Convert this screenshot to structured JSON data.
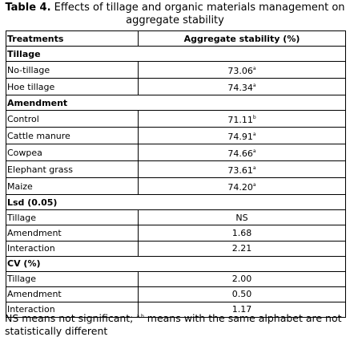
{
  "title": {
    "label": "Table 4.",
    "text": "Effects of tillage and organic materials management on aggregate stability"
  },
  "table": {
    "header": [
      "Treatments",
      "Aggregate stability (%)"
    ],
    "sections": [
      {
        "name": "Tillage",
        "rows": [
          {
            "treatment": "No-tillage",
            "value": "73.06",
            "sup": "a"
          },
          {
            "treatment": "Hoe tillage",
            "value": "74.34",
            "sup": "a"
          }
        ]
      },
      {
        "name": "Amendment",
        "rows": [
          {
            "treatment": "Control",
            "value": "71.11",
            "sup": "b"
          },
          {
            "treatment": "Cattle manure",
            "value": "74.91",
            "sup": "a"
          },
          {
            "treatment": "Cowpea",
            "value": "74.66",
            "sup": "a"
          },
          {
            "treatment": "Elephant grass",
            "value": "73.61",
            "sup": "a"
          },
          {
            "treatment": "Maize",
            "value": "74.20",
            "sup": "a"
          }
        ]
      },
      {
        "name": "Lsd (0.05)",
        "rows": [
          {
            "treatment": "Tillage",
            "value": "NS"
          },
          {
            "treatment": "Amendment",
            "value": "1.68"
          },
          {
            "treatment": "Interaction",
            "value": "2.21"
          }
        ]
      },
      {
        "name": "CV (%)",
        "rows": [
          {
            "treatment": "Tillage",
            "value": "2.00"
          },
          {
            "treatment": "Amendment",
            "value": "0.50"
          },
          {
            "treatment": "Interaction",
            "value": "1.17"
          }
        ]
      }
    ]
  },
  "footnote": {
    "part1": "NS means not significant;",
    "sup": "a,b",
    "part2": "means with the same alphabet are not statistically different"
  }
}
